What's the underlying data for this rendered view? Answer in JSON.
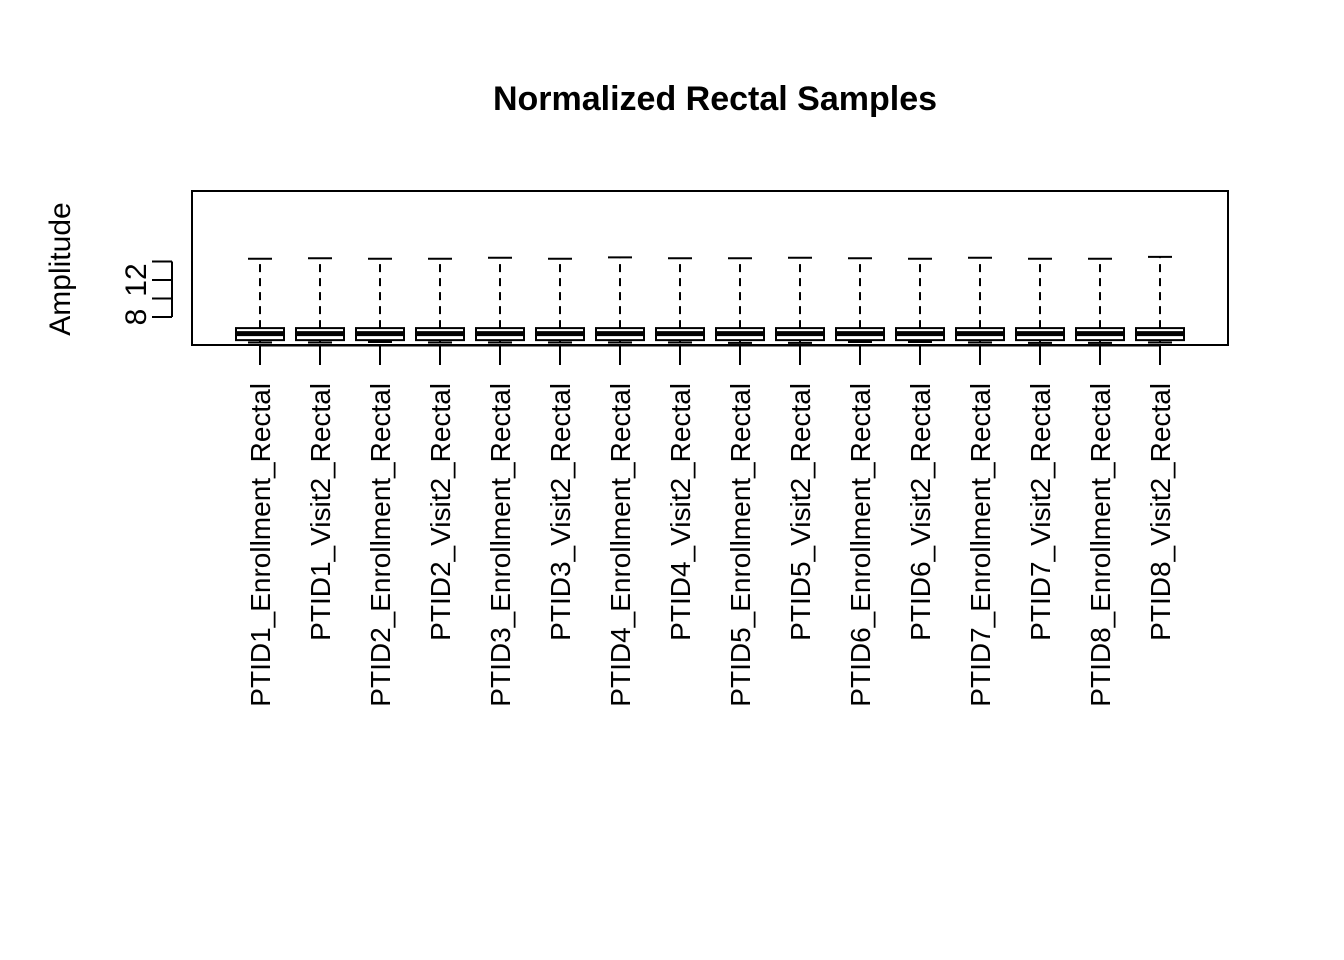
{
  "chart_data": {
    "type": "boxplot",
    "title": "Normalized Rectal Samples",
    "xlabel": "",
    "ylabel": "Amplitude",
    "ylim": [
      5,
      19.6
    ],
    "yticks": [
      8,
      10,
      12,
      14
    ],
    "ytick_labels": [
      "8",
      "",
      "12",
      ""
    ],
    "grid": false,
    "legend": "none",
    "categories": [
      "PTID1_Enrollment_Rectal",
      "PTID1_Visit2_Rectal",
      "PTID2_Enrollment_Rectal",
      "PTID2_Visit2_Rectal",
      "PTID3_Enrollment_Rectal",
      "PTID3_Visit2_Rectal",
      "PTID4_Enrollment_Rectal",
      "PTID4_Visit2_Rectal",
      "PTID5_Enrollment_Rectal",
      "PTID5_Visit2_Rectal",
      "PTID6_Enrollment_Rectal",
      "PTID6_Visit2_Rectal",
      "PTID7_Enrollment_Rectal",
      "PTID7_Visit2_Rectal",
      "PTID8_Enrollment_Rectal",
      "PTID8_Visit2_Rectal"
    ],
    "boxes": [
      {
        "min": 5.25,
        "q1": 5.5,
        "median": 6.2,
        "q3": 6.8,
        "max": 14.3
      },
      {
        "min": 5.25,
        "q1": 5.5,
        "median": 6.2,
        "q3": 6.8,
        "max": 14.35
      },
      {
        "min": 5.3,
        "q1": 5.5,
        "median": 6.2,
        "q3": 6.8,
        "max": 14.3
      },
      {
        "min": 5.25,
        "q1": 5.5,
        "median": 6.2,
        "q3": 6.8,
        "max": 14.3
      },
      {
        "min": 5.25,
        "q1": 5.5,
        "median": 6.2,
        "q3": 6.8,
        "max": 14.4
      },
      {
        "min": 5.25,
        "q1": 5.5,
        "median": 6.2,
        "q3": 6.8,
        "max": 14.3
      },
      {
        "min": 5.25,
        "q1": 5.5,
        "median": 6.2,
        "q3": 6.8,
        "max": 14.45
      },
      {
        "min": 5.25,
        "q1": 5.5,
        "median": 6.2,
        "q3": 6.8,
        "max": 14.35
      },
      {
        "min": 5.2,
        "q1": 5.5,
        "median": 6.2,
        "q3": 6.8,
        "max": 14.35
      },
      {
        "min": 5.2,
        "q1": 5.5,
        "median": 6.2,
        "q3": 6.8,
        "max": 14.4
      },
      {
        "min": 5.3,
        "q1": 5.5,
        "median": 6.2,
        "q3": 6.8,
        "max": 14.35
      },
      {
        "min": 5.3,
        "q1": 5.5,
        "median": 6.2,
        "q3": 6.8,
        "max": 14.3
      },
      {
        "min": 5.25,
        "q1": 5.5,
        "median": 6.2,
        "q3": 6.8,
        "max": 14.4
      },
      {
        "min": 5.2,
        "q1": 5.5,
        "median": 6.2,
        "q3": 6.8,
        "max": 14.3
      },
      {
        "min": 5.2,
        "q1": 5.5,
        "median": 6.2,
        "q3": 6.8,
        "max": 14.3
      },
      {
        "min": 5.25,
        "q1": 5.5,
        "median": 6.2,
        "q3": 6.8,
        "max": 14.5
      }
    ]
  }
}
